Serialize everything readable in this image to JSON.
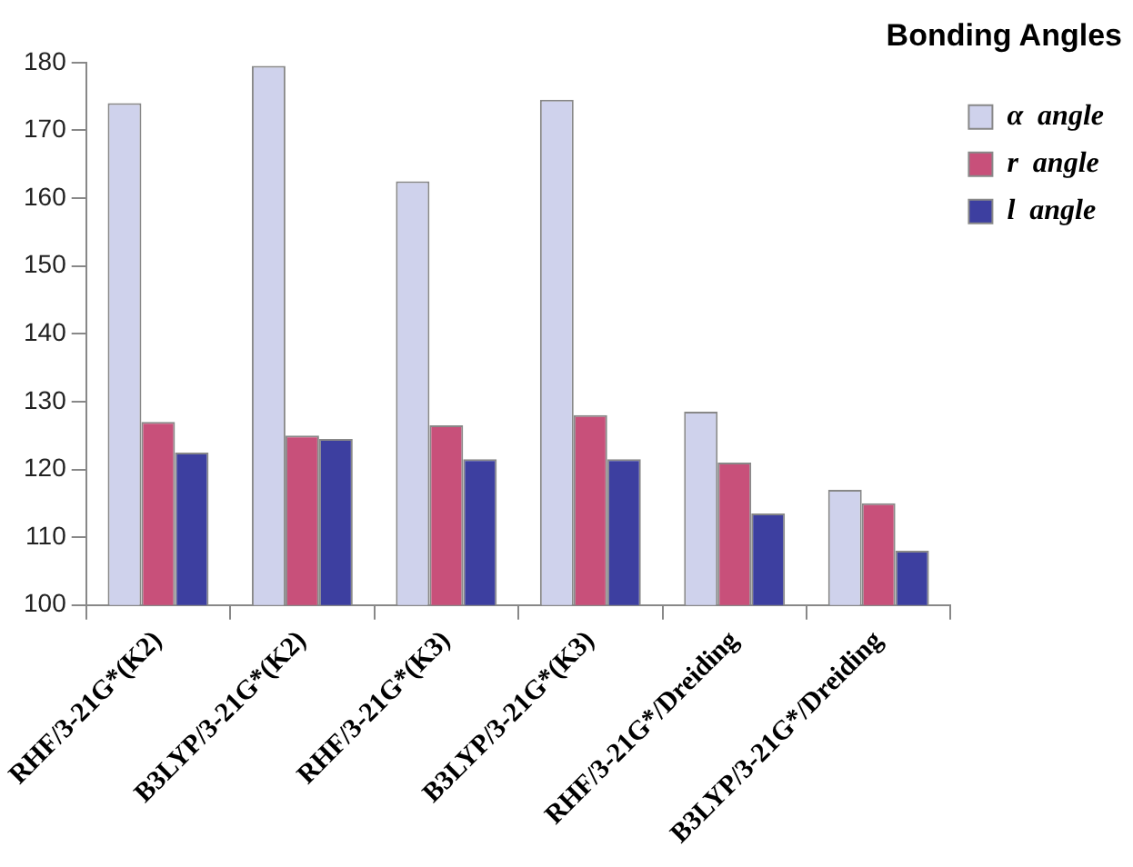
{
  "chart_data": {
    "type": "bar",
    "title": "Bonding Angles",
    "categories": [
      "RHF/3-21G*(K2)",
      "B3LYP/3-21G*(K2)",
      "RHF/3-21G*(K3)",
      "B3LYP/3-21G*(K3)",
      "RHF/3-21G*/Dreiding",
      "B3LYP/3-21G*/Dreiding"
    ],
    "series": [
      {
        "name": "α  angle",
        "color": "#cfd2ec",
        "values": [
          174,
          179.5,
          162.5,
          174.5,
          128.5,
          117
        ]
      },
      {
        "name": "r  angle",
        "color": "#c8507a",
        "values": [
          127,
          125,
          126.5,
          128,
          121,
          115
        ]
      },
      {
        "name": "l  angle",
        "color": "#3d3fa0",
        "values": [
          122.5,
          124.5,
          121.5,
          121.5,
          113.5,
          108
        ]
      }
    ],
    "ylim": [
      100,
      180
    ],
    "yticks": [
      100,
      110,
      120,
      130,
      140,
      150,
      160,
      170,
      180
    ],
    "grid": false,
    "legend": "top right"
  }
}
